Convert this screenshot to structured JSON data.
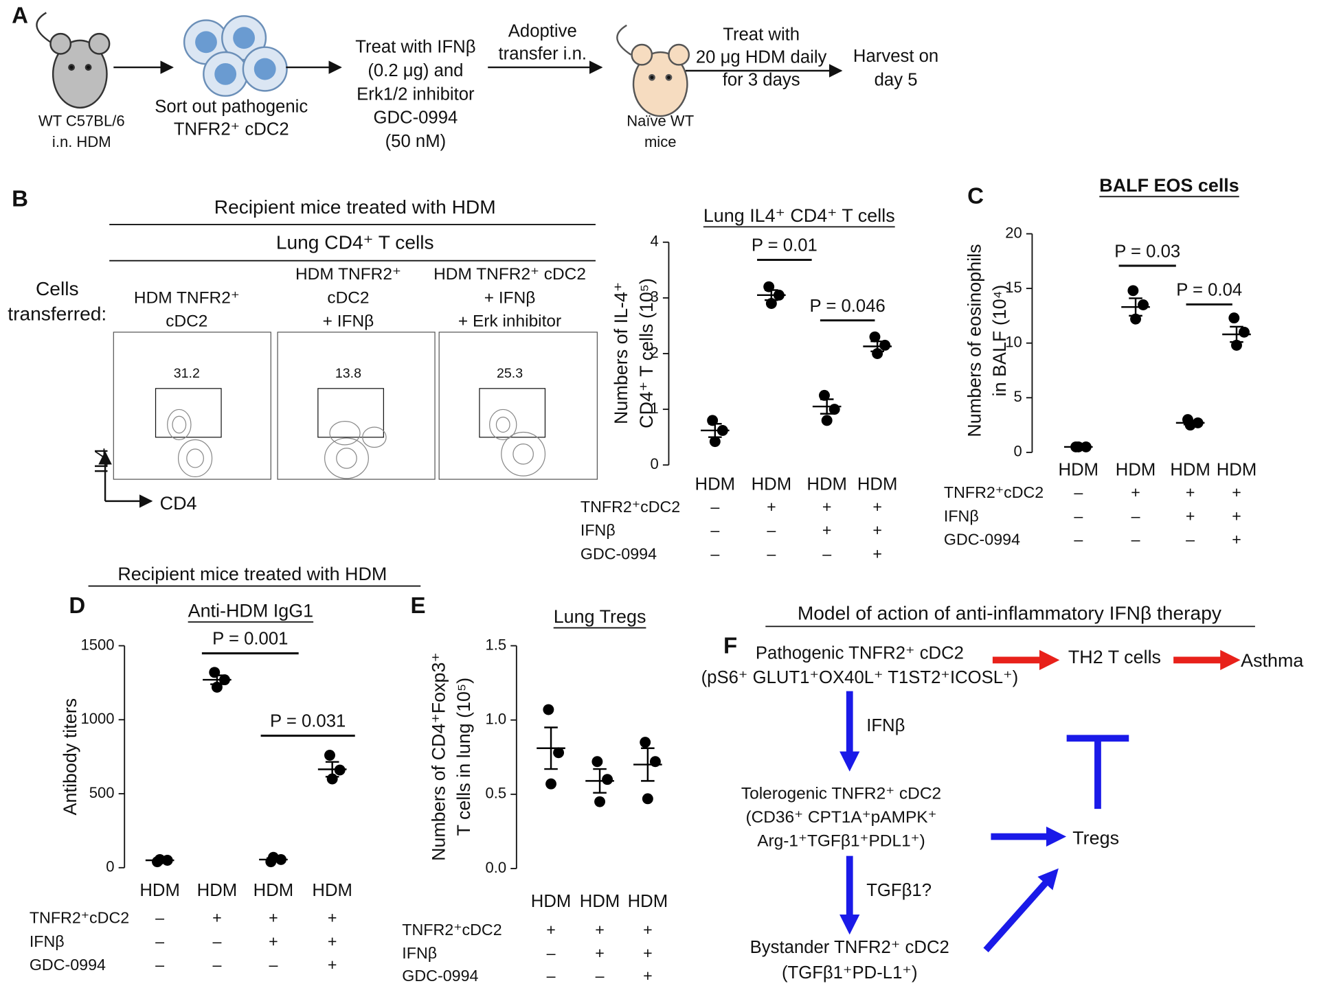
{
  "panel_labels": [
    "A",
    "B",
    "C",
    "D",
    "E",
    "F"
  ],
  "panel_a": {
    "mouse_1": [
      "WT C57BL/6",
      "i.n. HDM"
    ],
    "cells": [
      "Sort out pathogenic",
      "TNFR2⁺ cDC2"
    ],
    "treatment": [
      "Treat with IFNβ",
      "(0.2 μg) and",
      "Erk1/2 inhibitor",
      "GDC-0994",
      "(50 nM)"
    ],
    "transfer": [
      "Adoptive",
      "transfer i.n."
    ],
    "mouse_2": [
      "Naïve WT",
      "mice"
    ],
    "hdm": [
      "Treat with",
      "20 μg HDM daily",
      "for 3 days"
    ],
    "harvest": [
      "Harvest on",
      "day 5"
    ]
  },
  "panel_b_flow": {
    "header": "Recipient mice treated with HDM",
    "subheader": "Lung CD4⁺ T cells",
    "row_label": [
      "Cells",
      "transferred:"
    ],
    "columns": [
      {
        "label": [
          "HDM TNFR2⁺",
          "cDC2"
        ],
        "gate": 31.2
      },
      {
        "label": [
          "HDM TNFR2⁺",
          "cDC2",
          "+ IFNβ"
        ],
        "gate": 13.8
      },
      {
        "label": [
          "HDM TNFR2⁺ cDC2",
          "+ IFNβ",
          "+ Erk inhibitor"
        ],
        "gate": 25.3
      }
    ],
    "y_axis": "IL4",
    "x_axis": "CD4"
  },
  "chart_data": [
    {
      "type": "dot",
      "title": "Lung IL4⁺ CD4⁺ T cells",
      "ylabel": [
        "Numbers of IL-4⁺",
        "CD4⁺ T cells (10⁵)"
      ],
      "categories": [
        "HDM",
        "HDM",
        "HDM",
        "HDM"
      ],
      "values": [
        [
          0.8,
          0.62,
          0.42
        ],
        [
          3.2,
          3.05,
          2.9
        ],
        [
          1.25,
          1.0,
          0.8
        ],
        [
          2.3,
          2.15,
          2.0
        ]
      ],
      "means": [
        0.62,
        3.05,
        1.05,
        2.13
      ],
      "sems": [
        0.12,
        0.09,
        0.13,
        0.09
      ],
      "ylim": [
        0,
        4
      ],
      "yticks": [
        0,
        1,
        2,
        3,
        4
      ],
      "conditions": [
        {
          "name": "TNFR2⁺cDC2",
          "marks": [
            "–",
            "+",
            "+",
            "+"
          ]
        },
        {
          "name": "IFNβ",
          "marks": [
            "–",
            "–",
            "+",
            "+"
          ]
        },
        {
          "name": "GDC-0994",
          "marks": [
            "–",
            "–",
            "–",
            "+"
          ]
        }
      ],
      "comparisons": [
        "P = 0.01",
        "P = 0.046"
      ],
      "color": "#000000"
    },
    {
      "type": "dot",
      "title": "BALF EOS cells",
      "ylabel": [
        "Numbers of eosinophils",
        "in BALF (10⁴)"
      ],
      "categories": [
        "HDM",
        "HDM",
        "HDM",
        "HDM"
      ],
      "values": [
        [
          0.5,
          0.5,
          0.5
        ],
        [
          14.8,
          13.5,
          12.2
        ],
        [
          3.0,
          2.7,
          2.5
        ],
        [
          12.3,
          11.0,
          9.8
        ]
      ],
      "means": [
        0.5,
        13.3,
        2.7,
        10.8
      ],
      "sems": [
        0.05,
        0.8,
        0.15,
        0.7
      ],
      "ylim": [
        0,
        20
      ],
      "yticks": [
        0,
        5,
        10,
        15,
        20
      ],
      "conditions": [
        {
          "name": "TNFR2⁺cDC2",
          "marks": [
            "–",
            "+",
            "+",
            "+"
          ]
        },
        {
          "name": "IFNβ",
          "marks": [
            "–",
            "–",
            "+",
            "+"
          ]
        },
        {
          "name": "GDC-0994",
          "marks": [
            "–",
            "–",
            "–",
            "+"
          ]
        }
      ],
      "comparisons": [
        "P = 0.03",
        "P = 0.04"
      ],
      "color": "#000000"
    },
    {
      "type": "dot",
      "header": "Recipient mice treated with HDM",
      "title": "Anti-HDM IgG1",
      "ylabel": [
        "Antibody titers"
      ],
      "categories": [
        "HDM",
        "HDM",
        "HDM",
        "HDM"
      ],
      "values": [
        [
          40,
          50,
          55
        ],
        [
          1320,
          1270,
          1220
        ],
        [
          40,
          55,
          70
        ],
        [
          760,
          660,
          600
        ]
      ],
      "means": [
        50,
        1270,
        55,
        665
      ],
      "sems": [
        5,
        30,
        10,
        50
      ],
      "ylim": [
        0,
        1500
      ],
      "yticks": [
        0,
        500,
        1000,
        1500
      ],
      "conditions": [
        {
          "name": "TNFR2⁺cDC2",
          "marks": [
            "–",
            "+",
            "+",
            "+"
          ]
        },
        {
          "name": "IFNβ",
          "marks": [
            "–",
            "–",
            "+",
            "+"
          ]
        },
        {
          "name": "GDC-0994",
          "marks": [
            "–",
            "–",
            "–",
            "+"
          ]
        }
      ],
      "comparisons": [
        "P = 0.001",
        "P = 0.031"
      ],
      "color": "#000000"
    },
    {
      "type": "dot",
      "title": "Lung Tregs",
      "ylabel": [
        "Numbers of CD4⁺Foxp3⁺",
        "T cells in lung (10⁵)"
      ],
      "categories": [
        "HDM",
        "HDM",
        "HDM"
      ],
      "values": [
        [
          1.07,
          0.78,
          0.57
        ],
        [
          0.72,
          0.6,
          0.45
        ],
        [
          0.85,
          0.72,
          0.47
        ]
      ],
      "means": [
        0.81,
        0.59,
        0.7
      ],
      "sems": [
        0.14,
        0.08,
        0.11
      ],
      "ylim": [
        0,
        1.5
      ],
      "yticks": [
        {
          "value": 0,
          "label": "0.0"
        },
        0.5,
        {
          "value": 1,
          "label": "1.0"
        },
        1.5
      ],
      "conditions": [
        {
          "name": "TNFR2⁺cDC2",
          "marks": [
            "+",
            "+",
            "+"
          ]
        },
        {
          "name": "IFNβ",
          "marks": [
            "–",
            "+",
            "+"
          ]
        },
        {
          "name": "GDC-0994",
          "marks": [
            "–",
            "–",
            "+"
          ]
        }
      ],
      "comparisons": [],
      "color": "#000000"
    }
  ],
  "panel_f": {
    "title": "Model of action of anti-inflammatory IFNβ therapy",
    "pathogenic": [
      "Pathogenic TNFR2⁺ cDC2",
      "(pS6⁺ GLUT1⁺OX40L⁺ T1ST2⁺ICOSL⁺)"
    ],
    "th2": "TH2 T cells",
    "asthma": "Asthma",
    "ifn_edge": "IFNβ",
    "tolerogenic": [
      "Tolerogenic TNFR2⁺ cDC2",
      "(CD36⁺ CPT1A⁺pAMPK⁺",
      "Arg-1⁺TGFβ1⁺PDL1⁺)"
    ],
    "tregs": "Tregs",
    "tgf_edge": "TGFβ1?",
    "bystander": [
      "Bystander TNFR2⁺ cDC2",
      "(TGFβ1⁺PD-L1⁺)"
    ]
  }
}
